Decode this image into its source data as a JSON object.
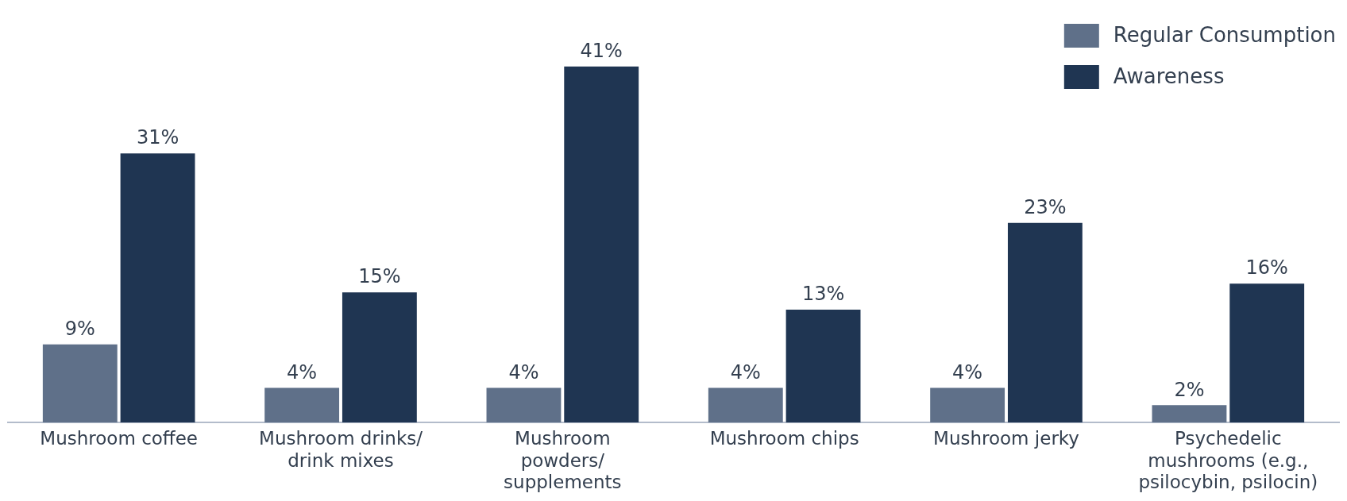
{
  "chart_data": {
    "type": "bar",
    "categories": [
      "Mushroom coffee",
      "Mushroom drinks/\ndrink mixes",
      "Mushroom\npowders/\nsupplements",
      "Mushroom chips",
      "Mushroom jerky",
      "Psychedelic\nmushrooms (e.g.,\npsilocybin, psilocin)"
    ],
    "series": [
      {
        "name": "Regular Consumption",
        "color": "#5f7089",
        "values": [
          9,
          4,
          4,
          4,
          4,
          2
        ],
        "value_labels": [
          "9%",
          "4%",
          "4%",
          "4%",
          "4%",
          "2%"
        ]
      },
      {
        "name": "Awareness",
        "color": "#1f3552",
        "values": [
          31,
          15,
          41,
          13,
          23,
          16
        ],
        "value_labels": [
          "31%",
          "15%",
          "41%",
          "13%",
          "23%",
          "16%"
        ]
      }
    ],
    "legend": "top right",
    "grid": false,
    "tick_labels": "x"
  }
}
